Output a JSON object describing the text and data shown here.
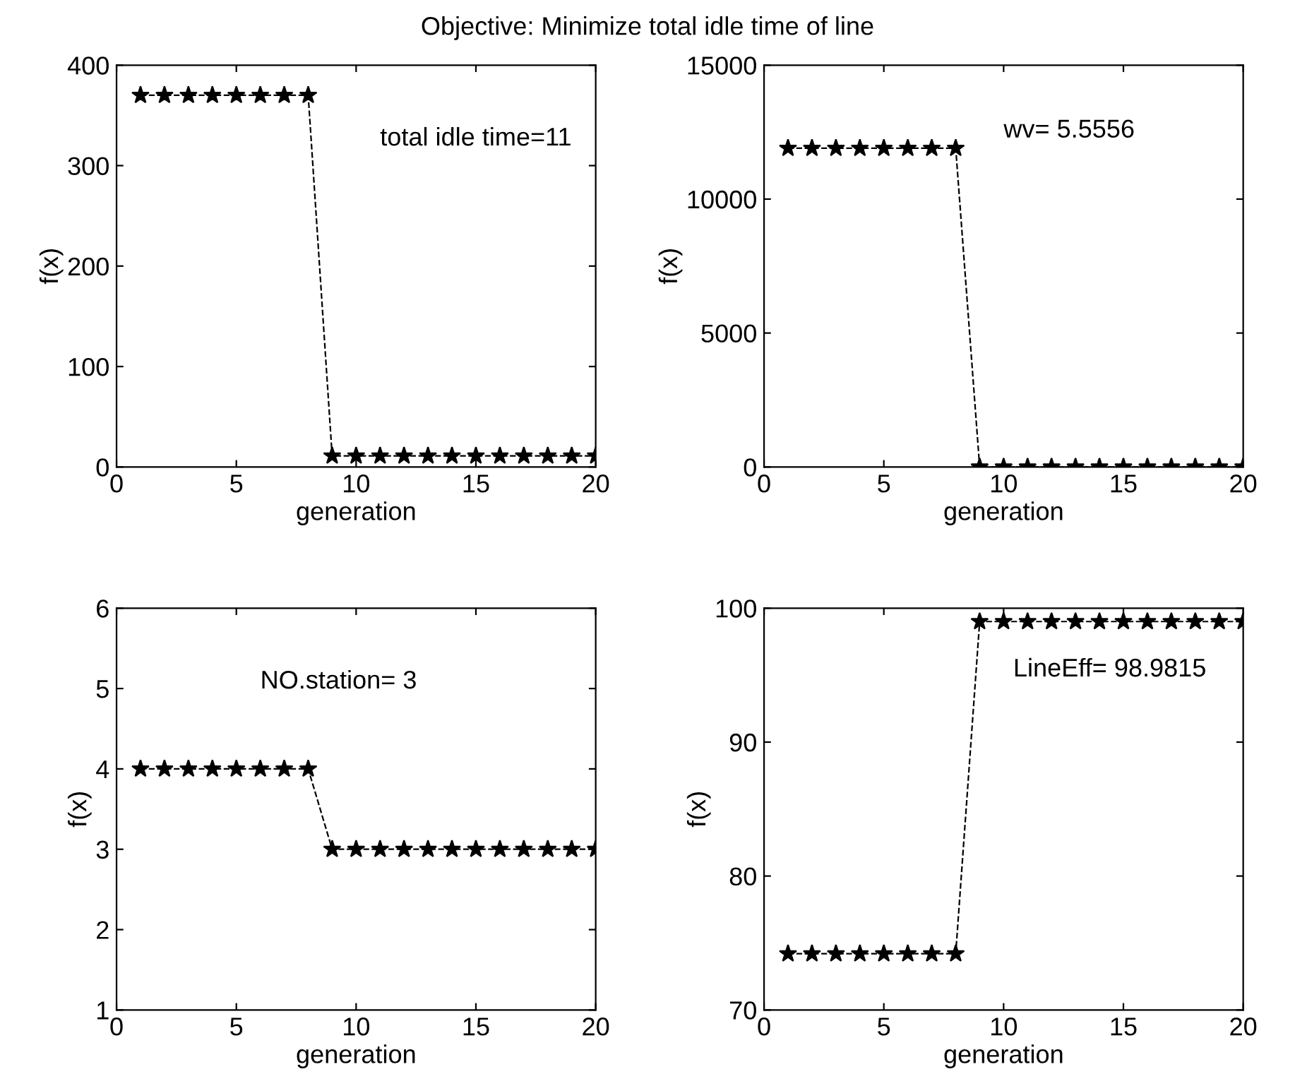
{
  "chart_data": [
    {
      "type": "line",
      "title": "Objective: Minimize total idle time of line",
      "xlabel": "generation",
      "ylabel": "f(x)",
      "annotations": [
        "total idle time=11"
      ],
      "x": [
        1,
        2,
        3,
        4,
        5,
        6,
        7,
        8,
        9,
        10,
        11,
        12,
        13,
        14,
        15,
        16,
        17,
        18,
        19,
        20
      ],
      "series": [
        {
          "color": "#000000",
          "values": [
            370,
            370,
            370,
            370,
            370,
            370,
            370,
            370,
            11,
            11,
            11,
            11,
            11,
            11,
            11,
            11,
            11,
            11,
            11,
            11
          ]
        }
      ],
      "marker": "star",
      "line_style": "dashed",
      "xlim": [
        0,
        20
      ],
      "xticks": [
        0,
        5,
        10,
        15,
        20
      ],
      "ylim": [
        0,
        400
      ],
      "yticks": [
        0,
        100,
        200,
        300,
        400
      ],
      "grid": false,
      "legend": false
    },
    {
      "type": "line",
      "xlabel": "generation",
      "ylabel": "f(x)",
      "annotations": [
        "wv= 5.5556"
      ],
      "x": [
        1,
        2,
        3,
        4,
        5,
        6,
        7,
        8,
        9,
        10,
        11,
        12,
        13,
        14,
        15,
        16,
        17,
        18,
        19,
        20
      ],
      "series": [
        {
          "color": "#000000",
          "values": [
            11900,
            11900,
            11900,
            11900,
            11900,
            11900,
            11900,
            11900,
            0,
            0,
            0,
            0,
            0,
            0,
            0,
            0,
            0,
            0,
            0,
            0
          ]
        }
      ],
      "marker": "star",
      "line_style": "dashed",
      "xlim": [
        0,
        20
      ],
      "xticks": [
        0,
        5,
        10,
        15,
        20
      ],
      "ylim": [
        0,
        15000
      ],
      "yticks": [
        0,
        5000,
        10000,
        15000
      ],
      "grid": false,
      "legend": false
    },
    {
      "type": "line",
      "xlabel": "generation",
      "ylabel": "f(x)",
      "annotations": [
        "NO.station= 3"
      ],
      "x": [
        1,
        2,
        3,
        4,
        5,
        6,
        7,
        8,
        9,
        10,
        11,
        12,
        13,
        14,
        15,
        16,
        17,
        18,
        19,
        20
      ],
      "series": [
        {
          "color": "#000000",
          "values": [
            4,
            4,
            4,
            4,
            4,
            4,
            4,
            4,
            3,
            3,
            3,
            3,
            3,
            3,
            3,
            3,
            3,
            3,
            3,
            3
          ]
        }
      ],
      "marker": "star",
      "line_style": "dashed",
      "xlim": [
        0,
        20
      ],
      "xticks": [
        0,
        5,
        10,
        15,
        20
      ],
      "ylim": [
        1,
        6
      ],
      "yticks": [
        1,
        2,
        3,
        4,
        5,
        6
      ],
      "grid": false,
      "legend": false
    },
    {
      "type": "line",
      "xlabel": "generation",
      "ylabel": "f(x)",
      "annotations": [
        "LineEff= 98.9815"
      ],
      "x": [
        1,
        2,
        3,
        4,
        5,
        6,
        7,
        8,
        9,
        10,
        11,
        12,
        13,
        14,
        15,
        16,
        17,
        18,
        19,
        20
      ],
      "series": [
        {
          "color": "#000000",
          "values": [
            74.2,
            74.2,
            74.2,
            74.2,
            74.2,
            74.2,
            74.2,
            74.2,
            99,
            99,
            99,
            99,
            99,
            99,
            99,
            99,
            99,
            99,
            99,
            99
          ]
        }
      ],
      "marker": "star",
      "line_style": "dashed",
      "xlim": [
        0,
        20
      ],
      "xticks": [
        0,
        5,
        10,
        15,
        20
      ],
      "ylim": [
        70,
        100
      ],
      "yticks": [
        70,
        80,
        90,
        100
      ],
      "grid": false,
      "legend": false
    }
  ]
}
